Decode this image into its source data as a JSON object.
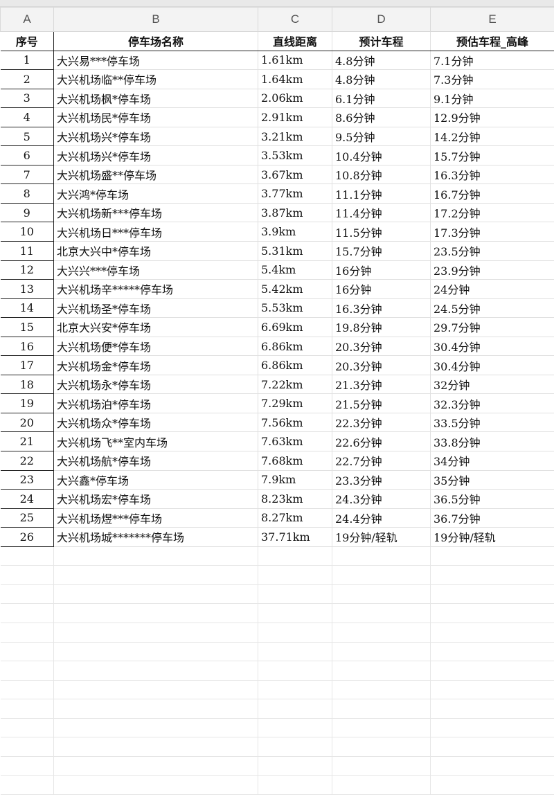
{
  "columns": [
    "A",
    "B",
    "C",
    "D",
    "E"
  ],
  "headers": [
    "序号",
    "停车场名称",
    "直线距离",
    "预计车程",
    "预估车程_高峰"
  ],
  "rows": [
    [
      "1",
      "大兴易***停车场",
      "1.61km",
      "4.8分钟",
      "7.1分钟"
    ],
    [
      "2",
      "大兴机场临**停车场",
      "1.64km",
      "4.8分钟",
      "7.3分钟"
    ],
    [
      "3",
      "大兴机场枫*停车场",
      "2.06km",
      "6.1分钟",
      "9.1分钟"
    ],
    [
      "4",
      "大兴机场民*停车场",
      "2.91km",
      "8.6分钟",
      "12.9分钟"
    ],
    [
      "5",
      "大兴机场兴*停车场",
      "3.21km",
      "9.5分钟",
      "14.2分钟"
    ],
    [
      "6",
      "大兴机场兴*停车场",
      "3.53km",
      "10.4分钟",
      "15.7分钟"
    ],
    [
      "7",
      "大兴机场盛**停车场",
      "3.67km",
      "10.8分钟",
      "16.3分钟"
    ],
    [
      "8",
      "大兴鸿*停车场",
      "3.77km",
      "11.1分钟",
      "16.7分钟"
    ],
    [
      "9",
      "大兴机场新***停车场",
      "3.87km",
      "11.4分钟",
      "17.2分钟"
    ],
    [
      "10",
      "大兴机场日***停车场",
      "3.9km",
      "11.5分钟",
      "17.3分钟"
    ],
    [
      "11",
      "北京大兴中*停车场",
      "5.31km",
      "15.7分钟",
      "23.5分钟"
    ],
    [
      "12",
      "大兴兴***停车场",
      "5.4km",
      "16分钟",
      "23.9分钟"
    ],
    [
      "13",
      "大兴机场辛*****停车场",
      "5.42km",
      "16分钟",
      "24分钟"
    ],
    [
      "14",
      "大兴机场圣*停车场",
      "5.53km",
      "16.3分钟",
      "24.5分钟"
    ],
    [
      "15",
      "北京大兴安*停车场",
      "6.69km",
      "19.8分钟",
      "29.7分钟"
    ],
    [
      "16",
      "大兴机场便*停车场",
      "6.86km",
      "20.3分钟",
      "30.4分钟"
    ],
    [
      "17",
      "大兴机场金*停车场",
      "6.86km",
      "20.3分钟",
      "30.4分钟"
    ],
    [
      "18",
      "大兴机场永*停车场",
      "7.22km",
      "21.3分钟",
      "32分钟"
    ],
    [
      "19",
      "大兴机场泊*停车场",
      "7.29km",
      "21.5分钟",
      "32.3分钟"
    ],
    [
      "20",
      "大兴机场众*停车场",
      "7.56km",
      "22.3分钟",
      "33.5分钟"
    ],
    [
      "21",
      "大兴机场飞**室内车场",
      "7.63km",
      "22.6分钟",
      "33.8分钟"
    ],
    [
      "22",
      "大兴机场航*停车场",
      "7.68km",
      "22.7分钟",
      "34分钟"
    ],
    [
      "23",
      "大兴鑫*停车场",
      "7.9km",
      "23.3分钟",
      "35分钟"
    ],
    [
      "24",
      "大兴机场宏*停车场",
      "8.23km",
      "24.3分钟",
      "36.5分钟"
    ],
    [
      "25",
      "大兴机场煜***停车场",
      "8.27km",
      "24.4分钟",
      "36.7分钟"
    ],
    [
      "26",
      "大兴机场城*******停车场",
      "37.71km",
      "19分钟/轻轨",
      "19分钟/轻轨"
    ]
  ]
}
